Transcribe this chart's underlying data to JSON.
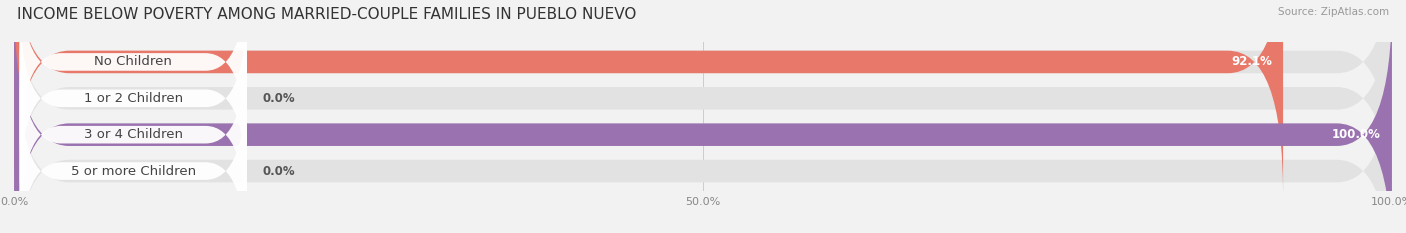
{
  "title": "INCOME BELOW POVERTY AMONG MARRIED-COUPLE FAMILIES IN PUEBLO NUEVO",
  "source": "Source: ZipAtlas.com",
  "categories": [
    "No Children",
    "1 or 2 Children",
    "3 or 4 Children",
    "5 or more Children"
  ],
  "values": [
    92.1,
    0.0,
    100.0,
    0.0
  ],
  "bar_colors": [
    "#e8796a",
    "#a8c4e0",
    "#9b72b0",
    "#5bc8c0"
  ],
  "background_color": "#f2f2f2",
  "bar_bg_color": "#e2e2e2",
  "xlim": [
    0,
    100
  ],
  "xticks": [
    0,
    50,
    100
  ],
  "xtick_labels": [
    "0.0%",
    "50.0%",
    "100.0%"
  ],
  "label_fontsize": 9.5,
  "title_fontsize": 11,
  "value_label_fontsize": 8.5
}
